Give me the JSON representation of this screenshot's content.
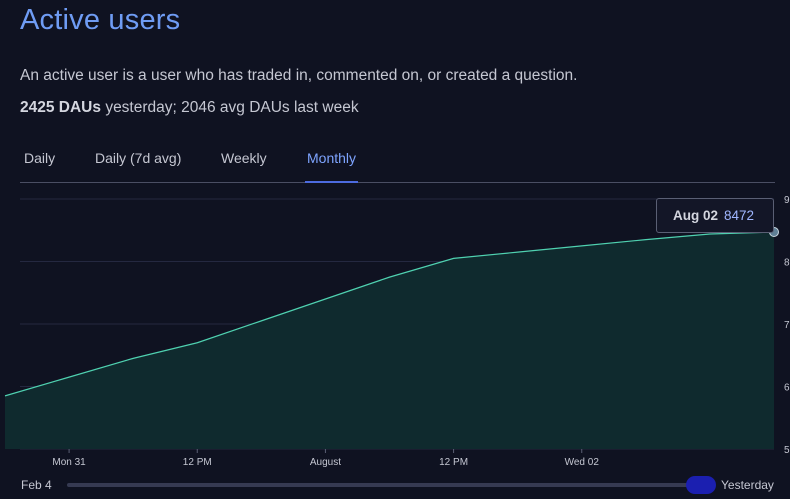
{
  "header": {
    "title": "Active users",
    "description": "An active user is a user who has traded in, commented on, or created a question.",
    "stat_value": "2425 DAUs",
    "stat_rest": "yesterday; 2046 avg DAUs last week"
  },
  "tabs": [
    {
      "label": "Daily"
    },
    {
      "label": "Daily (7d avg)"
    },
    {
      "label": "Weekly"
    },
    {
      "label": "Monthly",
      "active": true
    }
  ],
  "tooltip": {
    "date": "Aug 02",
    "value": "8472"
  },
  "range": {
    "start_label": "Feb 4",
    "end_label": "Yesterday"
  },
  "colors": {
    "accent": "#6f9cf4",
    "line": "#4fd1b0",
    "area": "#0f2a2e",
    "slider": "#1b1fb0"
  },
  "chart_data": {
    "type": "area",
    "x": [
      0,
      1,
      2,
      3,
      4,
      5,
      6,
      7,
      8,
      9,
      10,
      11,
      12
    ],
    "x_tick_labels": [
      {
        "at": 1,
        "label": "Mon 31"
      },
      {
        "at": 3,
        "label": "12 PM"
      },
      {
        "at": 5,
        "label": "August"
      },
      {
        "at": 7,
        "label": "12 PM"
      },
      {
        "at": 9,
        "label": "Wed 02"
      }
    ],
    "series": [
      {
        "values": [
          5850,
          6150,
          6450,
          6700,
          7050,
          7400,
          7750,
          8050,
          8150,
          8250,
          8350,
          8440,
          8472
        ]
      }
    ],
    "y_ticks": [
      "5",
      "6",
      "7",
      "8",
      "9"
    ],
    "ylim": [
      5000,
      9000
    ],
    "grid": true
  }
}
